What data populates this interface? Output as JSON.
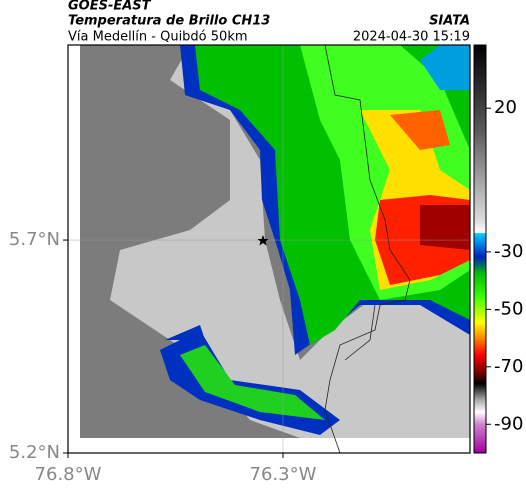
{
  "header": {
    "source": "GOES-EAST",
    "title": "Temperatura de Brillo CH13",
    "subtitle": "Vía Medellín - Quibdó 50km",
    "brand": "SIATA",
    "timestamp": "2024-04-30 15:19"
  },
  "map": {
    "xlim": [
      -76.8,
      -75.865
    ],
    "ylim": [
      5.2,
      6.158
    ],
    "xticks": [
      {
        "value": -76.8,
        "label": "76.8°W"
      },
      {
        "value": -76.3,
        "label": "76.3°W"
      }
    ],
    "yticks": [
      {
        "value": 5.2,
        "label": "5.2°N"
      },
      {
        "value": 5.7,
        "label": "5.7°N"
      }
    ]
  },
  "colorbar": {
    "lim": [
      -100,
      42
    ],
    "ticks": [
      20,
      -30,
      -50,
      -70,
      -90
    ]
  }
}
